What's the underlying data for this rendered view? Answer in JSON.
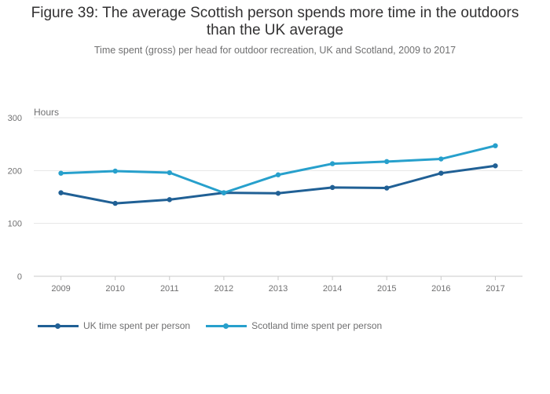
{
  "chart_data": {
    "type": "line",
    "title_line1": "Figure 39: The average Scottish person spends more time in the outdoors",
    "title_line2": "than the UK average",
    "subtitle": "Time spent (gross) per head for outdoor recreation, UK and Scotland, 2009 to 2017",
    "ylabel": "Hours",
    "xlabel": "",
    "ylim": [
      0,
      300
    ],
    "yticks": [
      0,
      100,
      200,
      300
    ],
    "categories": [
      "2009",
      "2010",
      "2011",
      "2012",
      "2013",
      "2014",
      "2015",
      "2016",
      "2017"
    ],
    "series": [
      {
        "name": "UK time spent per person",
        "color": "#206095",
        "values": [
          158,
          138,
          145,
          158,
          157,
          168,
          167,
          195,
          209
        ]
      },
      {
        "name": "Scotland time spent per person",
        "color": "#27A0CC",
        "values": [
          195,
          199,
          196,
          158,
          192,
          213,
          217,
          222,
          247
        ]
      }
    ],
    "grid": true,
    "legend_position": "bottom-left"
  }
}
